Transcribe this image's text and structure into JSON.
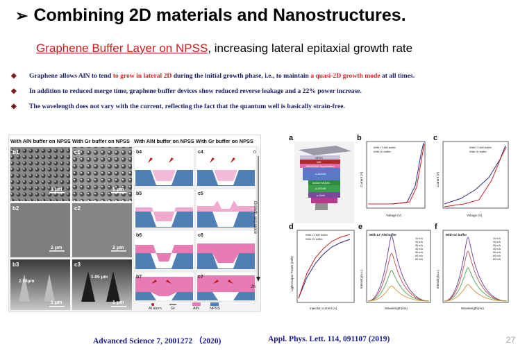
{
  "slide": {
    "title": "Combining 2D materials and Nanostructures.",
    "title_marker": "➢",
    "subtitle_link": "Graphene Buffer Layer on NPSS",
    "subtitle_rest": ", increasing lateral epitaxial growth rate",
    "bullets": [
      {
        "p1": "Graphene allows AlN to tend ",
        "r1": "to grow in lateral 2D",
        "p2": " during the initial growth phase, i.e., to maintain ",
        "r2": "a quasi-2D growth mode",
        "p3": " at all times."
      },
      {
        "p1": "In addition to reduced merge time, graphene buffer devices show reduced reverse leakage and a 22% power increase.",
        "r1": "",
        "p2": "",
        "r2": "",
        "p3": ""
      },
      {
        "p1": "The wavelength does not vary with the current, reflecting the fact that the quantum well is basically strain-free.",
        "r1": "",
        "p2": "",
        "r2": "",
        "p3": ""
      }
    ],
    "ref1": "Advanced Science 7, 2001272 （2020)",
    "ref2": "Appl. Phys. Lett. 114, 091107 (2019)",
    "page_number": "27"
  },
  "left_figure": {
    "col_headers": [
      "With AlN buffer on NPSS",
      "With Gr buffer on NPSS",
      "With AlN buffer on NPSS",
      "With Gr buffer on NPSS"
    ],
    "panel_labels": [
      "b1",
      "c1",
      "b4",
      "c4",
      "b2",
      "c2",
      "b5",
      "c5",
      "b3",
      "c3",
      "b6",
      "c6",
      "b7",
      "c7"
    ],
    "scale_bars": [
      "1 μm",
      "1 μm",
      "2 μm",
      "2 μm",
      "1 μm",
      "1 μm"
    ],
    "measurements": [
      "2.58μm",
      "1.05 μm"
    ],
    "axis_label": "Growth sequence",
    "axis_start": "0",
    "axis_end": "2h",
    "legend": [
      "Al atom",
      "Gr",
      "AlN",
      "NPSS"
    ]
  },
  "right_figure": {
    "panel_letters": [
      "a",
      "b",
      "c",
      "d",
      "e",
      "f"
    ],
    "device_layers": [
      "NPSS",
      "AlN",
      "AlN/AlGaN Superlattice",
      "n-AlGaN",
      "AlGaN MQWs",
      "p-AlGaN",
      "p-GaN"
    ],
    "b_legend": [
      "With LT AlN buffer",
      "With Gr buffer"
    ],
    "b_xlabel": "Voltage (V)",
    "b_ylabel": "Current (A)",
    "c_legend": [
      "With LT AlN buffer",
      "With Gr buffer"
    ],
    "c_xlabel": "Voltage (V)",
    "c_ylabel": "Current (A)",
    "d_legend": [
      "With LT AlN buffer",
      "With Gr buffer"
    ],
    "d_xlabel": "Injection current (A)",
    "d_ylabel": "Light Output Power (mW)",
    "e_title": "With LT AlN buffer",
    "f_title": "With Gr buffer",
    "ef_xlabel": "Wavelength(nm)",
    "ef_ylabel": "Intensity(a.u.)",
    "current_levels": [
      "10 mA",
      "20 mA",
      "30 mA",
      "40 mA",
      "50 mA",
      "60 mA",
      "80 mA"
    ],
    "series_colors": [
      "#2a2a80",
      "#cc2020"
    ]
  }
}
